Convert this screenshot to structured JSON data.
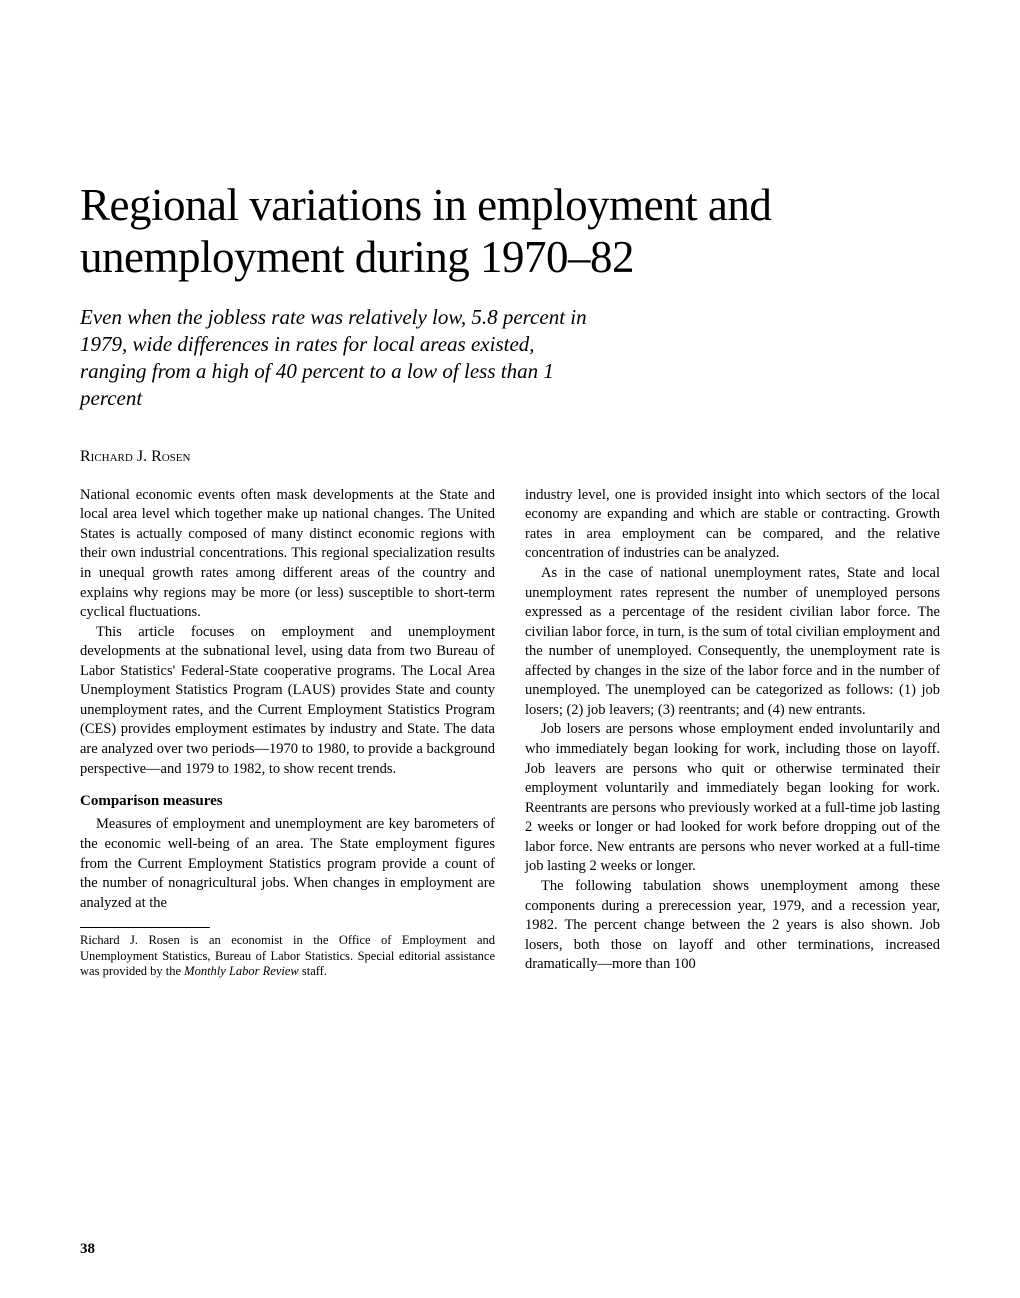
{
  "article": {
    "title": "Regional variations in employment and unemployment during 1970–82",
    "subtitle": "Even when the jobless rate was relatively low, 5.8 percent in 1979, wide differences in rates for local areas existed, ranging from a high of 40 percent to a low of less than 1 percent",
    "author": "Richard J. Rosen",
    "body": {
      "p1": "National economic events often mask developments at the State and local area level which together make up national changes. The United States is actually composed of many distinct economic regions with their own industrial concentrations. This regional specialization results in unequal growth rates among different areas of the country and explains why regions may be more (or less) susceptible to short-term cyclical fluctuations.",
      "p2": "This article focuses on employment and unemployment developments at the subnational level, using data from two Bureau of Labor Statistics' Federal-State cooperative programs. The Local Area Unemployment Statistics Program (LAUS) provides State and county unemployment rates, and the Current Employment Statistics Program (CES) provides employment estimates by industry and State. The data are analyzed over two periods—1970 to 1980, to provide a background perspective—and 1979 to 1982, to show recent trends.",
      "h1": "Comparison measures",
      "p3": "Measures of employment and unemployment are key barometers of the economic well-being of an area. The State employment figures from the Current Employment Statistics program provide a count of the number of nonagricultural jobs. When changes in employment are analyzed at the",
      "p4": "industry level, one is provided insight into which sectors of the local economy are expanding and which are stable or contracting. Growth rates in area employment can be compared, and the relative concentration of industries can be analyzed.",
      "p5": "As in the case of national unemployment rates, State and local unemployment rates represent the number of unemployed persons expressed as a percentage of the resident civilian labor force. The civilian labor force, in turn, is the sum of total civilian employment and the number of unemployed. Consequently, the unemployment rate is affected by changes in the size of the labor force and in the number of unemployed. The unemployed can be categorized as follows: (1) job losers; (2) job leavers; (3) reentrants; and (4) new entrants.",
      "p6": "Job losers are persons whose employment ended involuntarily and who immediately began looking for work, including those on layoff. Job leavers are persons who quit or otherwise terminated their employment voluntarily and immediately began looking for work. Reentrants are persons who previously worked at a full-time job lasting 2 weeks or longer or had looked for work before dropping out of the labor force. New entrants are persons who never worked at a full-time job lasting 2 weeks or longer.",
      "p7": "The following tabulation shows unemployment among these components during a prerecession year, 1979, and a recession year, 1982. The percent change between the 2 years is also shown. Job losers, both those on layoff and other terminations, increased dramatically—more than 100"
    },
    "footnote_prefix": "Richard J. Rosen is an economist in the Office of Employment and Unemployment Statistics, Bureau of Labor Statistics. Special editorial assistance was provided by the ",
    "footnote_italic": "Monthly Labor Review",
    "footnote_suffix": " staff.",
    "page_number": "38"
  },
  "style": {
    "background_color": "#ffffff",
    "text_color": "#000000",
    "title_fontsize": 45,
    "subtitle_fontsize": 21,
    "author_fontsize": 16,
    "body_fontsize": 14.5,
    "footnote_fontsize": 12.5,
    "font_family": "Times New Roman"
  }
}
